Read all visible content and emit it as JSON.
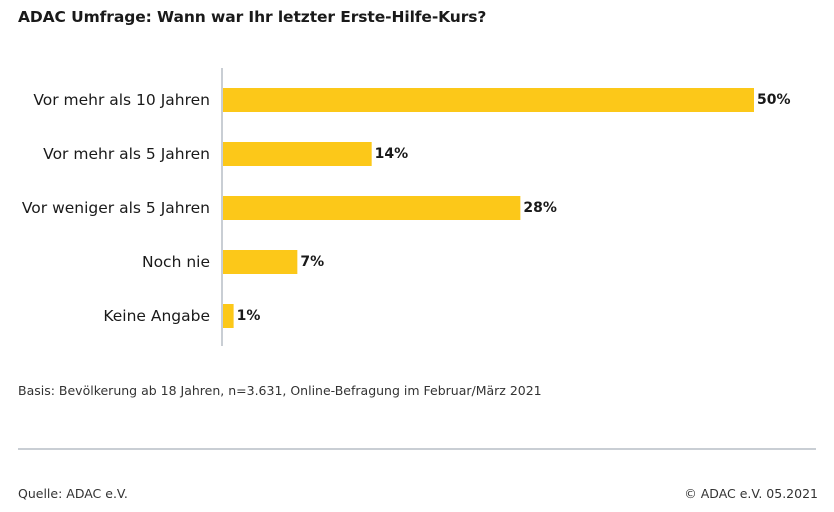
{
  "header": {
    "title": "ADAC Umfrage: Wann war Ihr letzter Erste-Hilfe-Kurs?"
  },
  "chart_data": {
    "type": "bar",
    "orientation": "horizontal",
    "categories": [
      "Vor mehr als 10 Jahren",
      "Vor mehr als 5 Jahren",
      "Vor weniger als 5 Jahren",
      "Noch nie",
      "Keine Angabe"
    ],
    "values": [
      50,
      14,
      28,
      7,
      1
    ],
    "value_labels": [
      "50%",
      "14%",
      "28%",
      "7%",
      "1%"
    ],
    "title": "ADAC Umfrage: Wann war Ihr letzter Erste-Hilfe-Kurs?",
    "xlim": [
      0,
      50
    ],
    "grid": false,
    "bar_color": "#fcc819",
    "axis_color": "#c9ced4"
  },
  "footer": {
    "basis": "Basis: Bevölkerung ab 18 Jahren, n=3.631, Online-Befragung im Februar/März 2021",
    "source": "Quelle: ADAC e.V.",
    "copyright": "© ADAC e.V. 05.2021"
  }
}
